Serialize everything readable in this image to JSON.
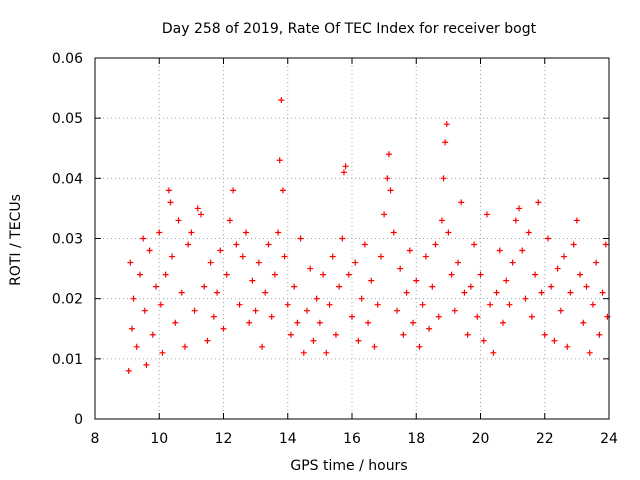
{
  "chart_data": {
    "type": "scatter",
    "title": "Day 258 of 2019, Rate Of TEC Index for receiver bogt",
    "xlabel": "GPS time / hours",
    "ylabel": "ROTI / TECUs",
    "xlim": [
      8,
      24
    ],
    "ylim": [
      0,
      0.06
    ],
    "xticks": [
      8,
      10,
      12,
      14,
      16,
      18,
      20,
      22,
      24
    ],
    "yticks": [
      0,
      0.01,
      0.02,
      0.03,
      0.04,
      0.05,
      0.06
    ],
    "xtick_labels": [
      "8",
      "10",
      "12",
      "14",
      "16",
      "18",
      "20",
      "22",
      "24"
    ],
    "ytick_labels": [
      "0",
      "0.01",
      "0.02",
      "0.03",
      "0.04",
      "0.05",
      "0.06"
    ],
    "grid": true,
    "marker": "+",
    "series": [
      {
        "name": "ROTI",
        "color": "#ff0000",
        "points": [
          [
            9.05,
            0.008
          ],
          [
            9.1,
            0.026
          ],
          [
            9.15,
            0.015
          ],
          [
            9.2,
            0.02
          ],
          [
            9.3,
            0.012
          ],
          [
            9.4,
            0.024
          ],
          [
            9.5,
            0.03
          ],
          [
            9.55,
            0.018
          ],
          [
            9.6,
            0.009
          ],
          [
            9.7,
            0.028
          ],
          [
            9.8,
            0.014
          ],
          [
            9.9,
            0.022
          ],
          [
            10.0,
            0.031
          ],
          [
            10.05,
            0.019
          ],
          [
            10.1,
            0.011
          ],
          [
            10.2,
            0.024
          ],
          [
            10.3,
            0.038
          ],
          [
            10.35,
            0.036
          ],
          [
            10.4,
            0.027
          ],
          [
            10.5,
            0.016
          ],
          [
            10.6,
            0.033
          ],
          [
            10.7,
            0.021
          ],
          [
            10.8,
            0.012
          ],
          [
            10.9,
            0.029
          ],
          [
            11.0,
            0.031
          ],
          [
            11.1,
            0.018
          ],
          [
            11.2,
            0.035
          ],
          [
            11.3,
            0.034
          ],
          [
            11.4,
            0.022
          ],
          [
            11.5,
            0.013
          ],
          [
            11.6,
            0.026
          ],
          [
            11.7,
            0.017
          ],
          [
            11.8,
            0.021
          ],
          [
            11.9,
            0.028
          ],
          [
            12.0,
            0.015
          ],
          [
            12.1,
            0.024
          ],
          [
            12.2,
            0.033
          ],
          [
            12.3,
            0.038
          ],
          [
            12.4,
            0.029
          ],
          [
            12.5,
            0.019
          ],
          [
            12.6,
            0.027
          ],
          [
            12.7,
            0.031
          ],
          [
            12.8,
            0.016
          ],
          [
            12.9,
            0.023
          ],
          [
            13.0,
            0.018
          ],
          [
            13.1,
            0.026
          ],
          [
            13.2,
            0.012
          ],
          [
            13.3,
            0.021
          ],
          [
            13.4,
            0.029
          ],
          [
            13.5,
            0.017
          ],
          [
            13.6,
            0.024
          ],
          [
            13.7,
            0.031
          ],
          [
            13.75,
            0.043
          ],
          [
            13.8,
            0.053
          ],
          [
            13.85,
            0.038
          ],
          [
            13.9,
            0.027
          ],
          [
            14.0,
            0.019
          ],
          [
            14.1,
            0.014
          ],
          [
            14.2,
            0.022
          ],
          [
            14.3,
            0.016
          ],
          [
            14.4,
            0.03
          ],
          [
            14.5,
            0.011
          ],
          [
            14.6,
            0.018
          ],
          [
            14.7,
            0.025
          ],
          [
            14.8,
            0.013
          ],
          [
            14.9,
            0.02
          ],
          [
            15.0,
            0.016
          ],
          [
            15.1,
            0.024
          ],
          [
            15.2,
            0.011
          ],
          [
            15.3,
            0.019
          ],
          [
            15.4,
            0.027
          ],
          [
            15.5,
            0.014
          ],
          [
            15.6,
            0.022
          ],
          [
            15.7,
            0.03
          ],
          [
            15.75,
            0.041
          ],
          [
            15.8,
            0.042
          ],
          [
            15.9,
            0.024
          ],
          [
            16.0,
            0.017
          ],
          [
            16.1,
            0.026
          ],
          [
            16.2,
            0.013
          ],
          [
            16.3,
            0.02
          ],
          [
            16.4,
            0.029
          ],
          [
            16.5,
            0.016
          ],
          [
            16.6,
            0.023
          ],
          [
            16.7,
            0.012
          ],
          [
            16.8,
            0.019
          ],
          [
            16.9,
            0.027
          ],
          [
            17.0,
            0.034
          ],
          [
            17.1,
            0.04
          ],
          [
            17.15,
            0.044
          ],
          [
            17.2,
            0.038
          ],
          [
            17.3,
            0.031
          ],
          [
            17.4,
            0.018
          ],
          [
            17.5,
            0.025
          ],
          [
            17.6,
            0.014
          ],
          [
            17.7,
            0.021
          ],
          [
            17.8,
            0.028
          ],
          [
            17.9,
            0.016
          ],
          [
            18.0,
            0.023
          ],
          [
            18.1,
            0.012
          ],
          [
            18.2,
            0.019
          ],
          [
            18.3,
            0.027
          ],
          [
            18.4,
            0.015
          ],
          [
            18.5,
            0.022
          ],
          [
            18.6,
            0.029
          ],
          [
            18.7,
            0.017
          ],
          [
            18.8,
            0.033
          ],
          [
            18.85,
            0.04
          ],
          [
            18.9,
            0.046
          ],
          [
            18.95,
            0.049
          ],
          [
            19.0,
            0.031
          ],
          [
            19.1,
            0.024
          ],
          [
            19.2,
            0.018
          ],
          [
            19.3,
            0.026
          ],
          [
            19.4,
            0.036
          ],
          [
            19.5,
            0.021
          ],
          [
            19.6,
            0.014
          ],
          [
            19.7,
            0.022
          ],
          [
            19.8,
            0.029
          ],
          [
            19.9,
            0.017
          ],
          [
            20.0,
            0.024
          ],
          [
            20.1,
            0.013
          ],
          [
            20.2,
            0.034
          ],
          [
            20.3,
            0.019
          ],
          [
            20.4,
            0.011
          ],
          [
            20.5,
            0.021
          ],
          [
            20.6,
            0.028
          ],
          [
            20.7,
            0.016
          ],
          [
            20.8,
            0.023
          ],
          [
            20.9,
            0.019
          ],
          [
            21.0,
            0.026
          ],
          [
            21.1,
            0.033
          ],
          [
            21.2,
            0.035
          ],
          [
            21.3,
            0.028
          ],
          [
            21.4,
            0.02
          ],
          [
            21.5,
            0.031
          ],
          [
            21.6,
            0.017
          ],
          [
            21.7,
            0.024
          ],
          [
            21.8,
            0.036
          ],
          [
            21.9,
            0.021
          ],
          [
            22.0,
            0.014
          ],
          [
            22.1,
            0.03
          ],
          [
            22.2,
            0.022
          ],
          [
            22.3,
            0.013
          ],
          [
            22.4,
            0.025
          ],
          [
            22.5,
            0.018
          ],
          [
            22.6,
            0.027
          ],
          [
            22.7,
            0.012
          ],
          [
            22.8,
            0.021
          ],
          [
            22.9,
            0.029
          ],
          [
            23.0,
            0.033
          ],
          [
            23.1,
            0.024
          ],
          [
            23.2,
            0.016
          ],
          [
            23.3,
            0.022
          ],
          [
            23.4,
            0.011
          ],
          [
            23.5,
            0.019
          ],
          [
            23.6,
            0.026
          ],
          [
            23.7,
            0.014
          ],
          [
            23.8,
            0.021
          ],
          [
            23.9,
            0.029
          ],
          [
            23.95,
            0.017
          ]
        ]
      }
    ]
  }
}
